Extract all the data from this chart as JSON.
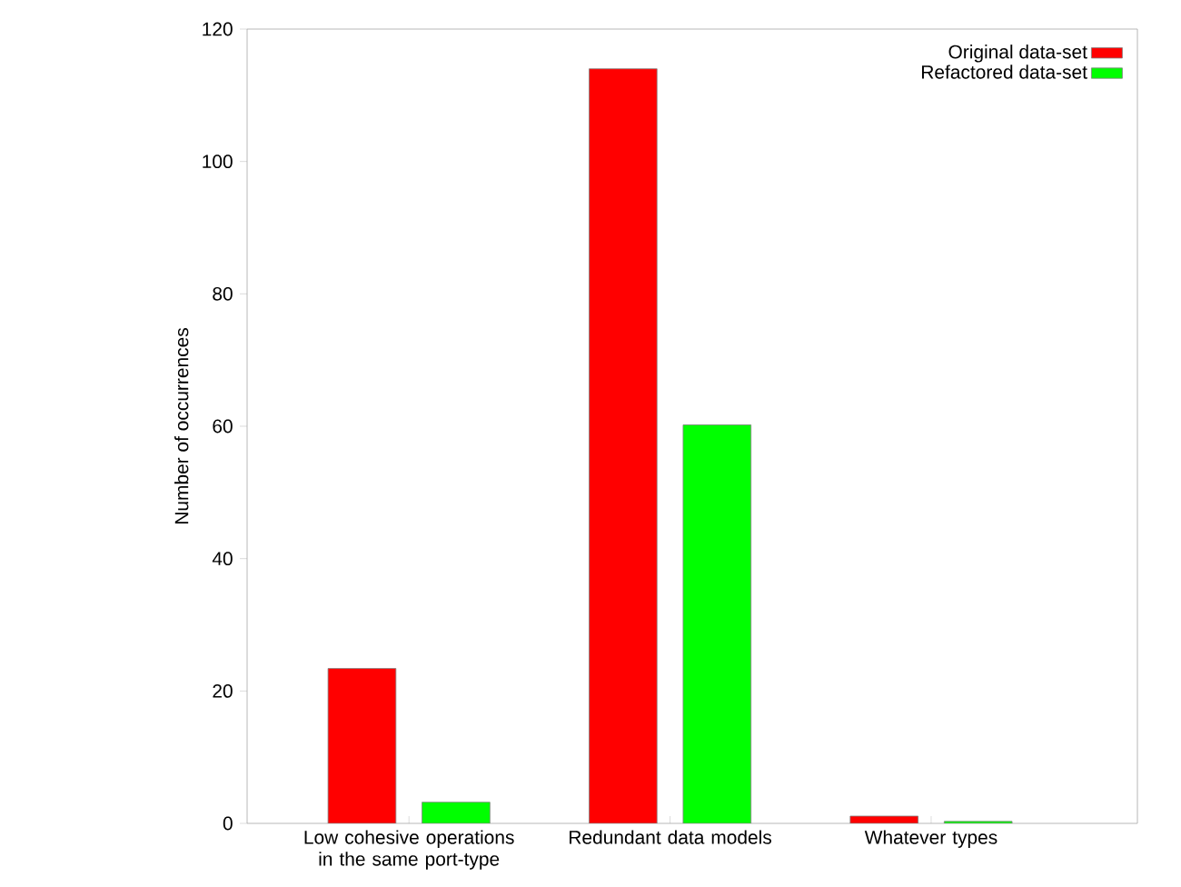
{
  "chart_data": {
    "type": "bar",
    "ylabel": "Number of occurrences",
    "categories": [
      "Low cohesive operations in the same port-type",
      "Redundant data models",
      "Whatever types"
    ],
    "series": [
      {
        "name": "Original data-set",
        "color": "#ff0000",
        "values": [
          23.4,
          114,
          1.1
        ]
      },
      {
        "name": "Refactored data-set",
        "color": "#00ff00",
        "values": [
          3.2,
          60.2,
          0.3
        ]
      }
    ],
    "ylim": [
      0,
      120
    ],
    "yticks": [
      0,
      20,
      40,
      60,
      80,
      100,
      120
    ],
    "legend": "top right"
  }
}
